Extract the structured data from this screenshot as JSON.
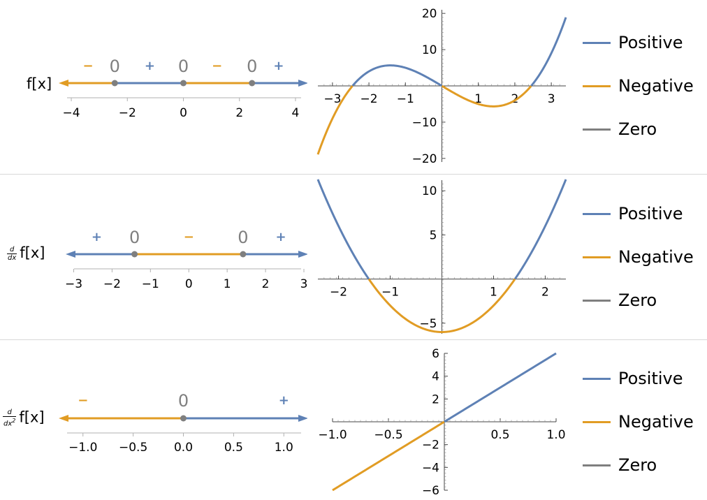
{
  "colors": {
    "positive": "#5e81b5",
    "negative": "#e19c24",
    "zero": "#7f7f7f"
  },
  "rows": [
    {
      "label": "f[x]",
      "label_kind": "plain"
    },
    {
      "label": "f[x]",
      "label_kind": "first-derivative",
      "deriv_num": "d",
      "deriv_den": "dx"
    },
    {
      "label": "f[x]",
      "label_kind": "second-derivative",
      "deriv_num": "d",
      "deriv_den": "dx",
      "deriv_power": "2"
    }
  ],
  "legend": {
    "items": [
      "Positive",
      "Negative",
      "Zero"
    ]
  },
  "chart_data": [
    {
      "type": "line",
      "subtype": "sign-number-line",
      "row": 0,
      "xlim": [
        -4.3,
        4.3
      ],
      "ticks": [
        -4,
        -2,
        0,
        2,
        4
      ],
      "tick_labels": [
        "−4",
        "−2",
        "0",
        "2",
        "4"
      ],
      "zeros": [
        -2.449,
        0,
        2.449
      ],
      "zero_label": "0",
      "intervals": [
        {
          "from": -4.3,
          "to": -2.449,
          "sign": "negative",
          "symbol": "−",
          "label_x": -3.4
        },
        {
          "from": -2.449,
          "to": 0,
          "sign": "positive",
          "symbol": "+",
          "label_x": -1.2
        },
        {
          "from": 0,
          "to": 2.449,
          "sign": "negative",
          "symbol": "−",
          "label_x": 1.2
        },
        {
          "from": 2.449,
          "to": 4.3,
          "sign": "positive",
          "symbol": "+",
          "label_x": 3.4
        }
      ]
    },
    {
      "type": "line",
      "subtype": "function-plot",
      "row": 0,
      "function": "x^3 - 6x",
      "xlim": [
        -3.4,
        3.4
      ],
      "ylim": [
        -21,
        21
      ],
      "x_ticks": [
        -3,
        -2,
        -1,
        1,
        2,
        3
      ],
      "x_tick_labels": [
        "−3",
        "−2",
        "−1",
        "1",
        "2",
        "3"
      ],
      "y_ticks": [
        -20,
        -10,
        10,
        20
      ],
      "y_tick_labels": [
        "−20",
        "−10",
        "10",
        "20"
      ],
      "zeros": [
        -2.449,
        0,
        2.449
      ],
      "sign_segments": [
        {
          "from": -3.4,
          "to": -2.449,
          "sign": "negative"
        },
        {
          "from": -2.449,
          "to": 0,
          "sign": "positive"
        },
        {
          "from": 0,
          "to": 2.449,
          "sign": "negative"
        },
        {
          "from": 2.449,
          "to": 3.4,
          "sign": "positive"
        }
      ],
      "grid": false
    },
    {
      "type": "line",
      "subtype": "sign-number-line",
      "row": 1,
      "xlim": [
        -3.1,
        3.0
      ],
      "ticks": [
        -3,
        -2,
        -1,
        0,
        1,
        2,
        3
      ],
      "tick_labels": [
        "−3",
        "−2",
        "−1",
        "0",
        "1",
        "2",
        "3"
      ],
      "zeros": [
        -1.414,
        1.414
      ],
      "zero_label": "0",
      "intervals": [
        {
          "from": -3.1,
          "to": -1.414,
          "sign": "positive",
          "symbol": "+",
          "label_x": -2.4
        },
        {
          "from": -1.414,
          "to": 1.414,
          "sign": "negative",
          "symbol": "−",
          "label_x": 0
        },
        {
          "from": 1.414,
          "to": 3.0,
          "sign": "positive",
          "symbol": "+",
          "label_x": 2.4
        }
      ]
    },
    {
      "type": "line",
      "subtype": "function-plot",
      "row": 1,
      "function": "3x^2 - 6",
      "xlim": [
        -2.4,
        2.4
      ],
      "ylim": [
        -6.2,
        11.2
      ],
      "x_ticks": [
        -2,
        -1,
        1,
        2
      ],
      "x_tick_labels": [
        "−2",
        "−1",
        "1",
        "2"
      ],
      "y_ticks": [
        -5,
        5,
        10
      ],
      "y_tick_labels": [
        "−5",
        "5",
        "10"
      ],
      "zeros": [
        -1.414,
        1.414
      ],
      "sign_segments": [
        {
          "from": -2.4,
          "to": -1.414,
          "sign": "positive"
        },
        {
          "from": -1.414,
          "to": 1.414,
          "sign": "negative"
        },
        {
          "from": 1.414,
          "to": 2.4,
          "sign": "positive"
        }
      ],
      "grid": false
    },
    {
      "type": "line",
      "subtype": "sign-number-line",
      "row": 2,
      "xlim": [
        -1.2,
        1.2
      ],
      "ticks": [
        -1.0,
        -0.5,
        0.0,
        0.5,
        1.0
      ],
      "tick_labels": [
        "−1.0",
        "−0.5",
        "0.0",
        "0.5",
        "1.0"
      ],
      "zeros": [
        0
      ],
      "zero_label": "0",
      "intervals": [
        {
          "from": -1.2,
          "to": 0,
          "sign": "negative",
          "symbol": "−",
          "label_x": -1.0
        },
        {
          "from": 0,
          "to": 1.2,
          "sign": "positive",
          "symbol": "+",
          "label_x": 1.0
        }
      ]
    },
    {
      "type": "line",
      "subtype": "function-plot",
      "row": 2,
      "function": "6x",
      "xlim": [
        -1.0,
        1.0
      ],
      "ylim": [
        -6,
        6
      ],
      "x_ticks": [
        -1.0,
        -0.5,
        0.5,
        1.0
      ],
      "x_tick_labels": [
        "−1.0",
        "−0.5",
        "0.5",
        "1.0"
      ],
      "y_ticks": [
        -6,
        -4,
        -2,
        2,
        4,
        6
      ],
      "y_tick_labels": [
        "−6",
        "−4",
        "−2",
        "2",
        "4",
        "6"
      ],
      "zeros": [
        0
      ],
      "sign_segments": [
        {
          "from": -1.0,
          "to": 0,
          "sign": "negative"
        },
        {
          "from": 0,
          "to": 1.0,
          "sign": "positive"
        }
      ],
      "grid": false
    }
  ]
}
